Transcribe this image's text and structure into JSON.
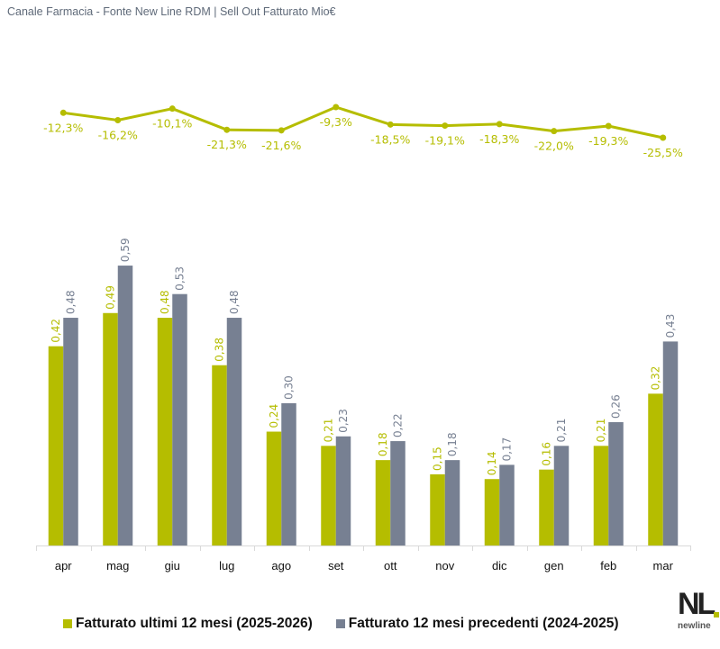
{
  "title": "Canale Farmacia - Fonte New Line RDM | Sell Out Fatturato Mio€",
  "colors": {
    "current": "#b5bd00",
    "previous": "#778092",
    "line": "#b5bd00",
    "current_label": "#b5bd00",
    "previous_label": "#778092"
  },
  "legend": {
    "current": "Fatturato ultimi 12 mesi (2025-2026)",
    "previous": "Fatturato 12 mesi precedenti (2024-2025)"
  },
  "logo": {
    "mark": "NL",
    "text": "newline"
  },
  "chart_data": {
    "type": "bar",
    "title": "Canale Farmacia - Fonte New Line RDM | Sell Out Fatturato Mio€",
    "xlabel": "",
    "ylabel": "",
    "categories": [
      "apr",
      "mag",
      "giu",
      "lug",
      "ago",
      "set",
      "ott",
      "nov",
      "dic",
      "gen",
      "feb",
      "mar"
    ],
    "series": [
      {
        "name": "Fatturato ultimi 12 mesi (2025-2026)",
        "values": [
          0.42,
          0.49,
          0.48,
          0.38,
          0.24,
          0.21,
          0.18,
          0.15,
          0.14,
          0.16,
          0.21,
          0.32
        ],
        "labels": [
          "0,42",
          "0,49",
          "0,48",
          "0,38",
          "0,24",
          "0,21",
          "0,18",
          "0,15",
          "0,14",
          "0,16",
          "0,21",
          "0,32"
        ]
      },
      {
        "name": "Fatturato 12 mesi precedenti (2024-2025)",
        "values": [
          0.48,
          0.59,
          0.53,
          0.48,
          0.3,
          0.23,
          0.22,
          0.18,
          0.17,
          0.21,
          0.26,
          0.43
        ],
        "labels": [
          "0,48",
          "0,59",
          "0,53",
          "0,48",
          "0,30",
          "0,23",
          "0,22",
          "0,18",
          "0,17",
          "0,21",
          "0,26",
          "0,43"
        ]
      }
    ],
    "variation": {
      "type": "line",
      "name": "Variazione %",
      "values": [
        -12.3,
        -16.2,
        -10.1,
        -21.3,
        -21.6,
        -9.3,
        -18.5,
        -19.1,
        -18.3,
        -22.0,
        -19.3,
        -25.5
      ],
      "labels": [
        "-12,3%",
        "-16,2%",
        "-10,1%",
        "-21,3%",
        "-21,6%",
        "-9,3%",
        "-18,5%",
        "-19,1%",
        "-18,3%",
        "-22,0%",
        "-19,3%",
        "-25,5%"
      ]
    },
    "ylim": [
      0,
      0.6
    ],
    "grid": false,
    "legend_position": "bottom"
  }
}
